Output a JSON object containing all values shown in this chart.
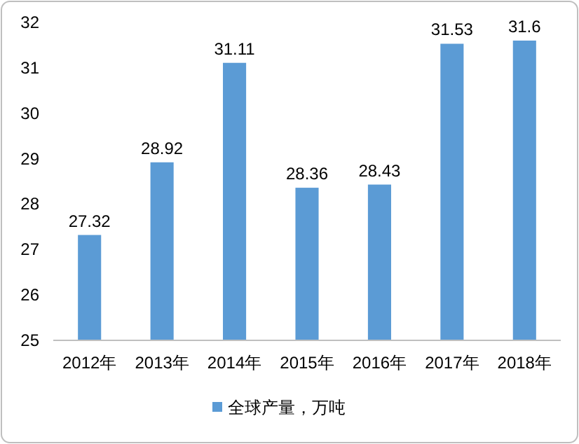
{
  "chart_data": {
    "type": "bar",
    "categories": [
      "2012年",
      "2013年",
      "2014年",
      "2015年",
      "2016年",
      "2017年",
      "2018年"
    ],
    "series": [
      {
        "name": "全球产量，万吨",
        "color": "#5b9bd5",
        "values": [
          27.32,
          28.92,
          31.11,
          28.36,
          28.43,
          31.53,
          31.6
        ]
      }
    ],
    "ylim": [
      25,
      32
    ],
    "yticks": [
      25,
      26,
      27,
      28,
      29,
      30,
      31,
      32
    ],
    "data_labels": true,
    "legend": "bottom"
  }
}
